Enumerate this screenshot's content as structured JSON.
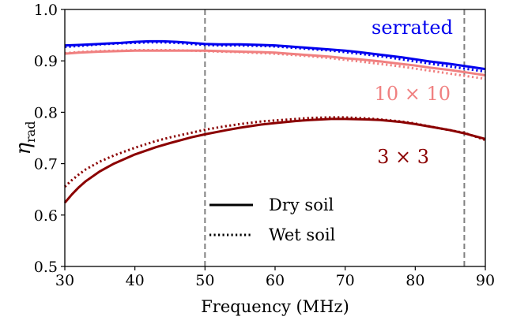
{
  "chart_data": {
    "type": "line",
    "xlabel": "Frequency (MHz)",
    "ylabel_main": "η",
    "ylabel_sub": "rad",
    "xlim": [
      30,
      90
    ],
    "ylim": [
      0.5,
      1.0
    ],
    "xticks": [
      "30",
      "40",
      "50",
      "60",
      "70",
      "80",
      "90"
    ],
    "yticks": [
      "0.5",
      "0.6",
      "0.7",
      "0.8",
      "0.9",
      "1.0"
    ],
    "grid": false,
    "vlines": [
      50,
      87
    ],
    "legend": {
      "placement": "lower-center",
      "entries": [
        {
          "label": "Dry soil",
          "style": "solid"
        },
        {
          "label": "Wet soil",
          "style": "dotted"
        }
      ]
    },
    "series": [
      {
        "name": "serrated",
        "color": "#0000ee",
        "dry": {
          "x": [
            30,
            32,
            35,
            38,
            40,
            42,
            44,
            46,
            48,
            50,
            52,
            55,
            58,
            60,
            62,
            65,
            68,
            70,
            72,
            75,
            78,
            80,
            82,
            85,
            88,
            90
          ],
          "y": [
            0.93,
            0.931,
            0.933,
            0.935,
            0.937,
            0.938,
            0.938,
            0.937,
            0.935,
            0.933,
            0.932,
            0.932,
            0.931,
            0.93,
            0.928,
            0.925,
            0.922,
            0.92,
            0.917,
            0.912,
            0.907,
            0.903,
            0.899,
            0.894,
            0.888,
            0.884
          ]
        },
        "wet": {
          "x": [
            30,
            32,
            35,
            38,
            40,
            42,
            44,
            46,
            48,
            50,
            52,
            55,
            58,
            60,
            62,
            65,
            68,
            70,
            72,
            75,
            78,
            80,
            82,
            85,
            88,
            90
          ],
          "y": [
            0.927,
            0.929,
            0.932,
            0.934,
            0.935,
            0.936,
            0.936,
            0.935,
            0.933,
            0.931,
            0.93,
            0.93,
            0.929,
            0.928,
            0.926,
            0.923,
            0.92,
            0.917,
            0.914,
            0.909,
            0.903,
            0.899,
            0.895,
            0.889,
            0.883,
            0.879
          ]
        }
      },
      {
        "name": "10 × 10",
        "color": "#f08080",
        "dry": {
          "x": [
            30,
            32,
            35,
            38,
            40,
            42,
            45,
            48,
            50,
            52,
            55,
            58,
            60,
            62,
            65,
            68,
            70,
            72,
            75,
            78,
            80,
            82,
            85,
            88,
            90
          ],
          "y": [
            0.914,
            0.916,
            0.918,
            0.919,
            0.92,
            0.92,
            0.92,
            0.92,
            0.92,
            0.919,
            0.918,
            0.917,
            0.916,
            0.914,
            0.911,
            0.908,
            0.905,
            0.903,
            0.899,
            0.894,
            0.891,
            0.887,
            0.882,
            0.876,
            0.872
          ]
        },
        "wet": {
          "x": [
            30,
            32,
            35,
            38,
            40,
            42,
            45,
            48,
            50,
            52,
            55,
            58,
            60,
            62,
            65,
            68,
            70,
            72,
            75,
            78,
            80,
            82,
            85,
            88,
            90
          ],
          "y": [
            0.915,
            0.917,
            0.919,
            0.92,
            0.921,
            0.921,
            0.921,
            0.92,
            0.919,
            0.918,
            0.917,
            0.915,
            0.914,
            0.912,
            0.909,
            0.905,
            0.902,
            0.899,
            0.894,
            0.889,
            0.885,
            0.881,
            0.875,
            0.869,
            0.865
          ]
        }
      },
      {
        "name": "3 × 3",
        "color": "#8b0000",
        "dry": {
          "x": [
            30,
            31,
            32,
            33,
            35,
            37,
            40,
            43,
            45,
            48,
            50,
            53,
            55,
            58,
            60,
            63,
            65,
            68,
            70,
            73,
            75,
            78,
            80,
            83,
            85,
            87,
            90
          ],
          "y": [
            0.624,
            0.64,
            0.654,
            0.666,
            0.685,
            0.7,
            0.718,
            0.732,
            0.74,
            0.751,
            0.757,
            0.765,
            0.77,
            0.776,
            0.779,
            0.783,
            0.785,
            0.787,
            0.787,
            0.786,
            0.785,
            0.781,
            0.777,
            0.77,
            0.765,
            0.759,
            0.748
          ]
        },
        "wet": {
          "x": [
            30,
            31,
            32,
            33,
            35,
            37,
            40,
            43,
            45,
            48,
            50,
            53,
            55,
            58,
            60,
            63,
            65,
            68,
            70,
            73,
            75,
            78,
            80,
            83,
            85,
            87,
            90
          ],
          "y": [
            0.655,
            0.668,
            0.679,
            0.689,
            0.704,
            0.716,
            0.731,
            0.744,
            0.751,
            0.76,
            0.766,
            0.773,
            0.777,
            0.782,
            0.784,
            0.787,
            0.789,
            0.79,
            0.79,
            0.788,
            0.786,
            0.782,
            0.778,
            0.77,
            0.765,
            0.76,
            0.746
          ]
        }
      }
    ]
  }
}
